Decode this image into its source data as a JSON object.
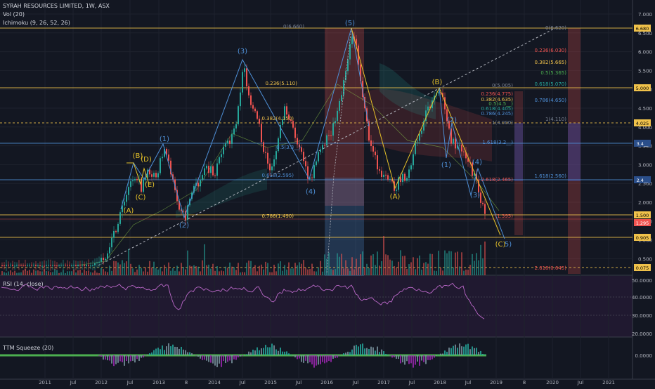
{
  "header": {
    "title": "SYRAH RESOURCES LIMITED, 1W, ASX",
    "vol": "Vol (20)",
    "ichimoku": "Ichimoku (9, 26, 52, 26)"
  },
  "rsi_label": "RSI (14, close)",
  "ttm_label": "TTM Squeeze (20)",
  "colors": {
    "background": "#131722",
    "candle_up": "#26a69a",
    "candle_down": "#ef5350",
    "wave_blue": "#4e8fd6",
    "wave_yellow": "#e6c229",
    "rsi": "#9c27b0",
    "level_line": "#f0c24b"
  },
  "price_axis": {
    "ticks": [
      "7.000",
      "6.500",
      "6.000",
      "5.500",
      "5.000",
      "4.500",
      "4.000",
      "3.500",
      "3.000",
      "2.500",
      "2.000",
      "1.500",
      "1.000",
      "0.500"
    ]
  },
  "price_badges": [
    {
      "value": "6.680",
      "color": "#f0c24b",
      "text": "#000"
    },
    {
      "value": "5.000",
      "color": "#f0c24b",
      "text": "#000"
    },
    {
      "value": "4.025",
      "color": "#f0c24b",
      "text": "#000"
    },
    {
      "value": "3.4__",
      "color": "#2a4e8a",
      "text": "#fff"
    },
    {
      "value": "2.4__",
      "color": "#2a4e8a",
      "text": "#fff"
    },
    {
      "value": "1.500",
      "color": "#f0c24b",
      "text": "#000"
    },
    {
      "value": "1.295",
      "color": "#ef5350",
      "text": "#fff"
    },
    {
      "value": "0.905",
      "color": "#f0c24b",
      "text": "#000"
    },
    {
      "value": "0.075",
      "color": "#f0c24b",
      "text": "#000"
    }
  ],
  "rsi_axis": {
    "ticks": [
      "50.0000",
      "40.0000",
      "30.0000",
      "20.0000"
    ]
  },
  "ttm_axis": {
    "ticks": [
      "0.0000"
    ]
  },
  "time_axis": {
    "ticks": [
      "2011",
      "Jul",
      "2012",
      "Jul",
      "2013",
      "8",
      "2014",
      "Jul",
      "2015",
      "Jul",
      "2016",
      "Jul",
      "2017",
      "Jul",
      "2018",
      "Jul",
      "2019",
      "8",
      "2020",
      "Jul",
      "2021"
    ]
  },
  "wave_labels": [
    {
      "text": "(3)",
      "color": "blue"
    },
    {
      "text": "(5)",
      "color": "blue"
    },
    {
      "text": "(B)",
      "color": "yellow"
    },
    {
      "text": "(1)",
      "color": "blue"
    },
    {
      "text": "(B)",
      "color": "yellow"
    },
    {
      "text": "(D)",
      "color": "yellow"
    },
    {
      "text": "(C)",
      "color": "yellow"
    },
    {
      "text": "(E)",
      "color": "yellow"
    },
    {
      "text": "(A)",
      "color": "yellow"
    },
    {
      "text": "(2)",
      "color": "blue"
    },
    {
      "text": "(4)",
      "color": "blue"
    },
    {
      "text": "(A)",
      "color": "yellow"
    },
    {
      "text": "(1)",
      "color": "blue"
    },
    {
      "text": "(2)",
      "color": "blue"
    },
    {
      "text": "(3)",
      "color": "blue"
    },
    {
      "text": "(4)",
      "color": "blue"
    },
    {
      "text": "(C)",
      "color": "yellow"
    },
    {
      "text": "5)",
      "color": "blue"
    }
  ],
  "fib_labels": [
    "0(6.660)",
    "0.236(5.110)",
    "0.382(4.150)",
    "0.5(3.3__)",
    "0.618(2.595)",
    "0.786(1.490)",
    "0(5.005)",
    "0.236(4.775)",
    "0.382(4.635)",
    "0.5(4.5__)",
    "0.618(4.405)",
    "0.786(4.245)",
    "1(4.000)",
    "1.618(3.2__)",
    "2.618(2.465)",
    "(1.395)",
    "0(6.620)",
    "0.236(6.030)",
    "0.382(5.665)",
    "0.5(5.365)",
    "0.618(5.070)",
    "0.786(4.650)",
    "1(4.110)",
    "1.618(2.560)",
    "2.618(0.645)"
  ]
}
